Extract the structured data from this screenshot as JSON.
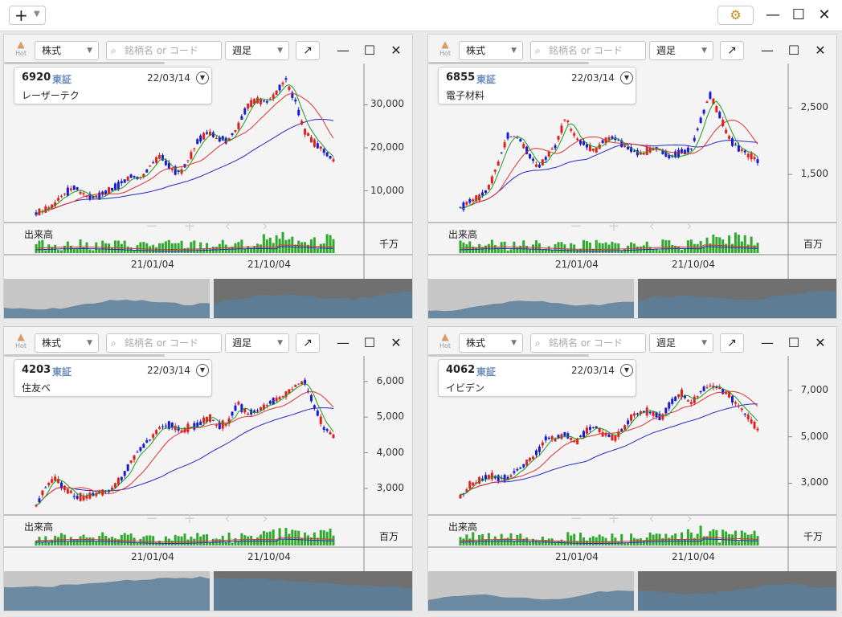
{
  "toolbar": {
    "add_icon": "plus-icon",
    "dropdown_icon": "chevron-down-icon",
    "settings_icon": "gear-icon",
    "window": {
      "minimize": "—",
      "maximize": "☐",
      "close": "✕"
    }
  },
  "panel_controls": {
    "hot_label": "Hot",
    "type_label": "株式",
    "search_placeholder": "銘柄名 or コード",
    "period_label": "週足",
    "volume_label": "出来高"
  },
  "colors": {
    "up": "#e02020",
    "down": "#1a1ad2",
    "ma_short": "#1a9a1a",
    "ma_mid": "#e03030",
    "ma_long": "#2828c8",
    "volume": "#2eaa2e"
  },
  "panels": [
    {
      "code": "6920",
      "market": "東証",
      "date": "22/03/14",
      "name": "レーザーテク",
      "y_ticks": [
        "30,000",
        "20,000",
        "10,000"
      ],
      "volume_unit": "千万",
      "x_ticks": [
        "21/01/04",
        "21/10/04"
      ],
      "price_ylim": [
        3000,
        37000
      ],
      "price_series": [
        4600,
        5600,
        7200,
        9500,
        11000,
        9000,
        8400,
        9200,
        10500,
        12000,
        13500,
        13000,
        16200,
        18000,
        15500,
        14200,
        17500,
        22000,
        23500,
        22000,
        21800,
        24500,
        29500,
        31000,
        30500,
        32500,
        36000,
        31000,
        24000,
        21000,
        19500,
        17000
      ]
    },
    {
      "code": "6855",
      "market": "東証",
      "date": "22/03/14",
      "name": "電子材料",
      "y_ticks": [
        "2,500",
        "1,500"
      ],
      "volume_unit": "百万",
      "x_ticks": [
        "21/01/04",
        "21/10/04"
      ],
      "price_ylim": [
        800,
        3000
      ],
      "price_series": [
        1000,
        1100,
        1150,
        1300,
        1700,
        2100,
        2050,
        1850,
        1600,
        1750,
        1950,
        2350,
        2050,
        1950,
        1850,
        2000,
        2050,
        1950,
        1850,
        1800,
        1900,
        1850,
        1750,
        1850,
        1850,
        2300,
        2700,
        2400,
        2050,
        1900,
        1800,
        1700
      ]
    },
    {
      "code": "4203",
      "market": "東証",
      "date": "22/03/14",
      "name": "住友ベ",
      "y_ticks": [
        "6,000",
        "5,000",
        "4,000",
        "3,000"
      ],
      "volume_unit": "百万",
      "x_ticks": [
        "21/01/04",
        "21/10/04"
      ],
      "price_ylim": [
        2300,
        6400
      ],
      "price_series": [
        2500,
        3050,
        3300,
        3000,
        2800,
        2700,
        2850,
        2900,
        3000,
        3300,
        3800,
        4150,
        4400,
        4750,
        4800,
        4600,
        4700,
        4800,
        5000,
        4750,
        4800,
        5400,
        5100,
        5200,
        5300,
        5500,
        5600,
        5900,
        6000,
        5300,
        4700,
        4500
      ]
    },
    {
      "code": "4062",
      "market": "東証",
      "date": "22/03/14",
      "name": "イビデン",
      "y_ticks": [
        "7,000",
        "5,000",
        "3,000"
      ],
      "volume_unit": "千万",
      "x_ticks": [
        "21/01/04",
        "21/10/04"
      ],
      "price_ylim": [
        1700,
        8000
      ],
      "price_series": [
        2400,
        2900,
        3100,
        3300,
        3250,
        3200,
        3600,
        3900,
        4300,
        5000,
        4900,
        5100,
        4700,
        5200,
        5450,
        5100,
        4900,
        5350,
        5900,
        6100,
        6000,
        5800,
        6500,
        6900,
        6400,
        6900,
        7200,
        7100,
        6800,
        6300,
        5900,
        5300
      ]
    }
  ]
}
